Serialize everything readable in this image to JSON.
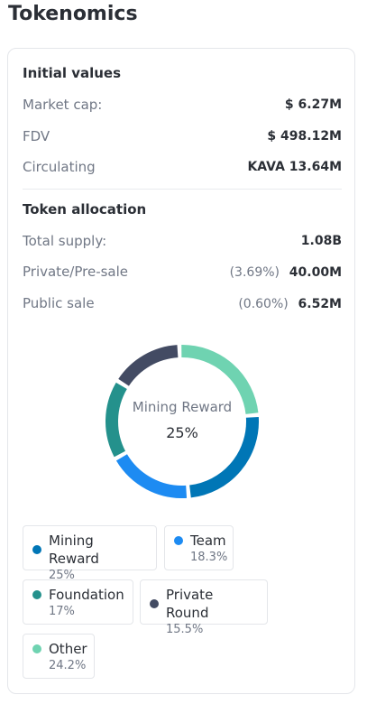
{
  "page": {
    "title": "Tokenomics"
  },
  "initial_values": {
    "title": "Initial values",
    "rows": [
      {
        "label": "Market cap:",
        "value": "$ 6.27M"
      },
      {
        "label": "FDV",
        "value": "$ 498.12M"
      },
      {
        "label": "Circulating",
        "value": "KAVA 13.64M"
      }
    ]
  },
  "token_allocation": {
    "title": "Token allocation",
    "total_supply": {
      "label": "Total supply:",
      "value": "1.08B"
    },
    "private_presale": {
      "label": "Private/Pre-sale",
      "percent": "(3.69%)",
      "value": "40.00M"
    },
    "public_sale": {
      "label": "Public sale",
      "percent": "(0.60%)",
      "value": "6.52M"
    }
  },
  "chart_center": {
    "label": "Mining Reward",
    "value": "25%"
  },
  "chart_data": {
    "type": "pie",
    "categories": [
      "Mining Reward",
      "Team",
      "Foundation",
      "Private Round",
      "Other"
    ],
    "values": [
      25,
      18.3,
      17,
      15.5,
      24.2
    ],
    "title": ""
  },
  "legend": [
    {
      "name": "Mining Reward",
      "pct": "25%",
      "color": "#0076b6"
    },
    {
      "name": "Team",
      "pct": "18.3%",
      "color": "#1d8bf2"
    },
    {
      "name": "Foundation",
      "pct": "17%",
      "color": "#24918c"
    },
    {
      "name": "Private Round",
      "pct": "15.5%",
      "color": "#434b63"
    },
    {
      "name": "Other",
      "pct": "24.2%",
      "color": "#6fd3b1"
    }
  ]
}
